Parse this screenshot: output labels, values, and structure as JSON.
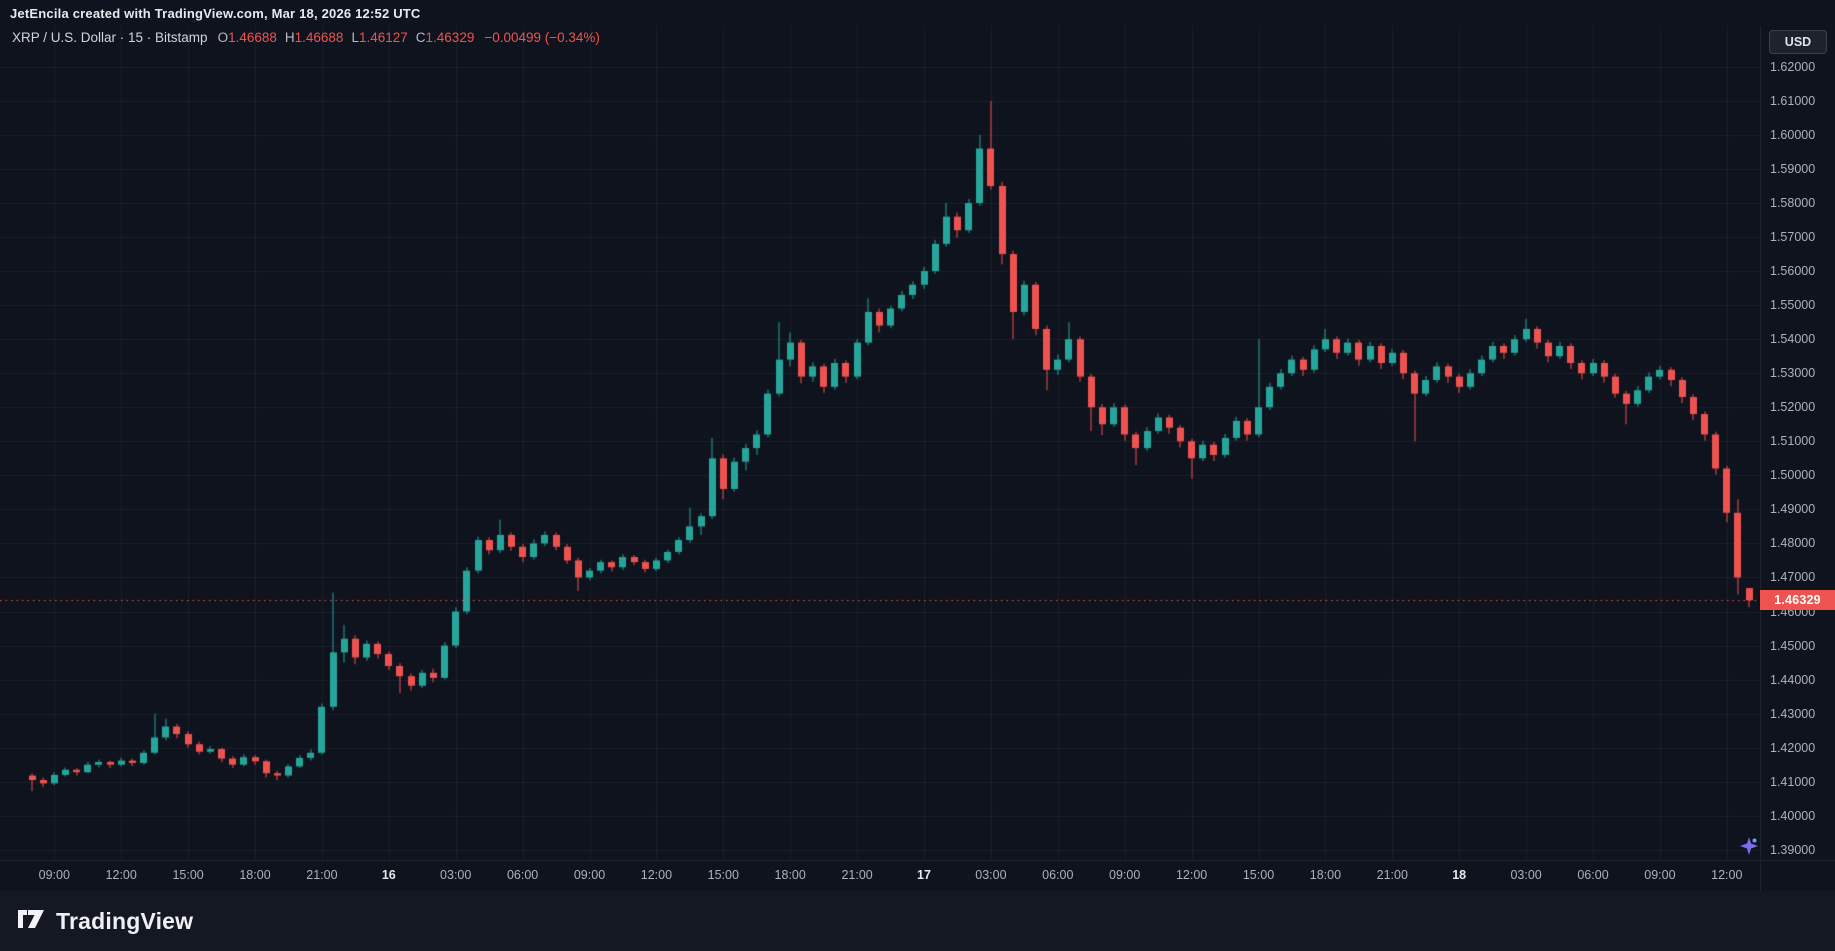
{
  "attribution": {
    "text": "JetEncila created with TradingView.com, Mar 18, 2026 12:52 UTC"
  },
  "header": {
    "title_full": "XRP / U.S. Dollar · 15 · Bitstamp",
    "symbol": "XRP / U.S. Dollar",
    "interval": "15",
    "exchange": "Bitstamp",
    "ohlc": {
      "o_label": "O",
      "o": "1.46688",
      "h_label": "H",
      "h": "1.46688",
      "l_label": "L",
      "l": "1.46127",
      "c_label": "C",
      "c": "1.46329",
      "change": "−0.00499 (−0.34%)"
    }
  },
  "currency_button": {
    "label": "USD"
  },
  "price_scale": {
    "ticks": [
      "1.62000",
      "1.61000",
      "1.60000",
      "1.59000",
      "1.58000",
      "1.57000",
      "1.56000",
      "1.55000",
      "1.54000",
      "1.53000",
      "1.52000",
      "1.51000",
      "1.50000",
      "1.49000",
      "1.48000",
      "1.47000",
      "1.46000",
      "1.45000",
      "1.44000",
      "1.43000",
      "1.42000",
      "1.41000",
      "1.40000",
      "1.39000"
    ],
    "last_price_label": "1.46329",
    "last_price": 1.46329
  },
  "time_axis": {
    "labels": [
      {
        "t": "09:00",
        "i": 2
      },
      {
        "t": "12:00",
        "i": 8
      },
      {
        "t": "15:00",
        "i": 14
      },
      {
        "t": "18:00",
        "i": 20
      },
      {
        "t": "21:00",
        "i": 26
      },
      {
        "t": "16",
        "i": 32,
        "major": true
      },
      {
        "t": "03:00",
        "i": 38
      },
      {
        "t": "06:00",
        "i": 44
      },
      {
        "t": "09:00",
        "i": 50
      },
      {
        "t": "12:00",
        "i": 56
      },
      {
        "t": "15:00",
        "i": 62
      },
      {
        "t": "18:00",
        "i": 68
      },
      {
        "t": "21:00",
        "i": 74
      },
      {
        "t": "17",
        "i": 80,
        "major": true
      },
      {
        "t": "03:00",
        "i": 86
      },
      {
        "t": "06:00",
        "i": 92
      },
      {
        "t": "09:00",
        "i": 98
      },
      {
        "t": "12:00",
        "i": 104
      },
      {
        "t": "15:00",
        "i": 110
      },
      {
        "t": "18:00",
        "i": 116
      },
      {
        "t": "21:00",
        "i": 122
      },
      {
        "t": "18",
        "i": 128,
        "major": true
      },
      {
        "t": "03:00",
        "i": 134
      },
      {
        "t": "06:00",
        "i": 140
      },
      {
        "t": "09:00",
        "i": 146
      },
      {
        "t": "12:00",
        "i": 152
      }
    ]
  },
  "logo": {
    "text": "TradingView"
  },
  "chart_data": {
    "type": "candlestick",
    "title": "XRP / U.S. Dollar · 15 · Bitstamp",
    "symbol": "XRP/USD",
    "source_interval": "15",
    "granularity_minutes": 30,
    "approximation": "30-minute downsample estimated from axes of the 15-minute chart",
    "start": "Mar 15 08:00 UTC",
    "end": "Mar 18 12:52 UTC",
    "ylim": [
      1.387,
      1.632
    ],
    "grid": true,
    "colors": {
      "up": "#26a69a",
      "down": "#ef5350",
      "grid": "rgba(240,243,250,0.055)",
      "last_price_line": "#ef5350"
    },
    "last": {
      "open": 1.46688,
      "high": 1.46688,
      "low": 1.46127,
      "close": 1.46329,
      "change": -0.00499,
      "change_pct": -0.34
    },
    "candles": [
      [
        1.4118,
        1.4125,
        1.4072,
        1.4105
      ],
      [
        1.4105,
        1.4112,
        1.4085,
        1.4095
      ],
      [
        1.4095,
        1.4128,
        1.409,
        1.412
      ],
      [
        1.412,
        1.4142,
        1.4115,
        1.4135
      ],
      [
        1.4135,
        1.414,
        1.4118,
        1.4128
      ],
      [
        1.4128,
        1.4158,
        1.4125,
        1.415
      ],
      [
        1.415,
        1.4165,
        1.4142,
        1.4158
      ],
      [
        1.4158,
        1.4162,
        1.414,
        1.415
      ],
      [
        1.415,
        1.417,
        1.4145,
        1.4162
      ],
      [
        1.4162,
        1.4168,
        1.4146,
        1.4155
      ],
      [
        1.4155,
        1.4192,
        1.415,
        1.4185
      ],
      [
        1.4185,
        1.43,
        1.418,
        1.423
      ],
      [
        1.423,
        1.4285,
        1.4222,
        1.4262
      ],
      [
        1.4262,
        1.427,
        1.4228,
        1.424
      ],
      [
        1.424,
        1.4248,
        1.42,
        1.421
      ],
      [
        1.421,
        1.4218,
        1.418,
        1.4188
      ],
      [
        1.4188,
        1.4205,
        1.4182,
        1.4196
      ],
      [
        1.4196,
        1.42,
        1.4158,
        1.4168
      ],
      [
        1.4168,
        1.4175,
        1.414,
        1.415
      ],
      [
        1.415,
        1.418,
        1.4145,
        1.4172
      ],
      [
        1.4172,
        1.4178,
        1.415,
        1.416
      ],
      [
        1.416,
        1.4165,
        1.4112,
        1.4125
      ],
      [
        1.4125,
        1.4132,
        1.4105,
        1.4118
      ],
      [
        1.4118,
        1.4152,
        1.4112,
        1.4145
      ],
      [
        1.4145,
        1.4178,
        1.414,
        1.417
      ],
      [
        1.417,
        1.4195,
        1.4162,
        1.4185
      ],
      [
        1.4185,
        1.433,
        1.418,
        1.432
      ],
      [
        1.432,
        1.4655,
        1.431,
        1.448
      ],
      [
        1.448,
        1.456,
        1.445,
        1.452
      ],
      [
        1.452,
        1.453,
        1.4445,
        1.4465
      ],
      [
        1.4465,
        1.4515,
        1.4455,
        1.4505
      ],
      [
        1.4505,
        1.4512,
        1.4462,
        1.4475
      ],
      [
        1.4475,
        1.4482,
        1.4428,
        1.444
      ],
      [
        1.444,
        1.4448,
        1.436,
        1.441
      ],
      [
        1.441,
        1.4418,
        1.4368,
        1.4382
      ],
      [
        1.4382,
        1.4428,
        1.4375,
        1.442
      ],
      [
        1.442,
        1.4432,
        1.4392,
        1.4405
      ],
      [
        1.4405,
        1.451,
        1.44,
        1.45
      ],
      [
        1.45,
        1.4612,
        1.4492,
        1.46
      ],
      [
        1.46,
        1.473,
        1.4592,
        1.472
      ],
      [
        1.472,
        1.482,
        1.4712,
        1.481
      ],
      [
        1.481,
        1.4818,
        1.4768,
        1.478
      ],
      [
        1.478,
        1.487,
        1.4772,
        1.4825
      ],
      [
        1.4825,
        1.4832,
        1.4778,
        1.479
      ],
      [
        1.479,
        1.4798,
        1.4745,
        1.476
      ],
      [
        1.476,
        1.4812,
        1.4752,
        1.48
      ],
      [
        1.48,
        1.4835,
        1.4792,
        1.4825
      ],
      [
        1.4825,
        1.4832,
        1.478,
        1.479
      ],
      [
        1.479,
        1.4798,
        1.474,
        1.475
      ],
      [
        1.475,
        1.4758,
        1.466,
        1.47
      ],
      [
        1.47,
        1.4728,
        1.4692,
        1.472
      ],
      [
        1.472,
        1.4752,
        1.4712,
        1.4745
      ],
      [
        1.4745,
        1.475,
        1.4718,
        1.473
      ],
      [
        1.473,
        1.4768,
        1.4722,
        1.476
      ],
      [
        1.476,
        1.4766,
        1.4736,
        1.4745
      ],
      [
        1.4745,
        1.4752,
        1.4715,
        1.4725
      ],
      [
        1.4725,
        1.4758,
        1.4718,
        1.475
      ],
      [
        1.475,
        1.4782,
        1.4742,
        1.4775
      ],
      [
        1.4775,
        1.4818,
        1.4768,
        1.481
      ],
      [
        1.481,
        1.4905,
        1.4802,
        1.485
      ],
      [
        1.485,
        1.4888,
        1.4825,
        1.488
      ],
      [
        1.488,
        1.511,
        1.4872,
        1.505
      ],
      [
        1.505,
        1.5062,
        1.493,
        1.496
      ],
      [
        1.496,
        1.5052,
        1.4952,
        1.504
      ],
      [
        1.504,
        1.5092,
        1.5015,
        1.508
      ],
      [
        1.508,
        1.5132,
        1.506,
        1.512
      ],
      [
        1.512,
        1.5252,
        1.5112,
        1.524
      ],
      [
        1.524,
        1.545,
        1.5232,
        1.534
      ],
      [
        1.534,
        1.542,
        1.532,
        1.539
      ],
      [
        1.539,
        1.5398,
        1.527,
        1.529
      ],
      [
        1.529,
        1.5332,
        1.5275,
        1.532
      ],
      [
        1.532,
        1.5328,
        1.5242,
        1.526
      ],
      [
        1.526,
        1.5342,
        1.5252,
        1.533
      ],
      [
        1.533,
        1.5338,
        1.5272,
        1.529
      ],
      [
        1.529,
        1.54,
        1.5282,
        1.539
      ],
      [
        1.539,
        1.552,
        1.5382,
        1.548
      ],
      [
        1.548,
        1.549,
        1.542,
        1.544
      ],
      [
        1.544,
        1.5498,
        1.5432,
        1.549
      ],
      [
        1.549,
        1.5542,
        1.5482,
        1.553
      ],
      [
        1.553,
        1.557,
        1.5518,
        1.556
      ],
      [
        1.556,
        1.5612,
        1.5548,
        1.56
      ],
      [
        1.56,
        1.5692,
        1.5592,
        1.568
      ],
      [
        1.568,
        1.58,
        1.5672,
        1.576
      ],
      [
        1.576,
        1.5772,
        1.5698,
        1.572
      ],
      [
        1.572,
        1.5812,
        1.5712,
        1.58
      ],
      [
        1.58,
        1.6,
        1.5792,
        1.596
      ],
      [
        1.596,
        1.61,
        1.584,
        1.585
      ],
      [
        1.585,
        1.5862,
        1.562,
        1.565
      ],
      [
        1.565,
        1.566,
        1.54,
        1.548
      ],
      [
        1.548,
        1.5572,
        1.547,
        1.556
      ],
      [
        1.556,
        1.5568,
        1.5412,
        1.543
      ],
      [
        1.543,
        1.544,
        1.525,
        1.531
      ],
      [
        1.531,
        1.5355,
        1.5295,
        1.534
      ],
      [
        1.534,
        1.545,
        1.5332,
        1.54
      ],
      [
        1.54,
        1.5408,
        1.5275,
        1.529
      ],
      [
        1.529,
        1.5298,
        1.513,
        1.52
      ],
      [
        1.52,
        1.521,
        1.5118,
        1.515
      ],
      [
        1.515,
        1.5212,
        1.5142,
        1.52
      ],
      [
        1.52,
        1.5208,
        1.5102,
        1.512
      ],
      [
        1.512,
        1.5128,
        1.503,
        1.508
      ],
      [
        1.508,
        1.5142,
        1.5072,
        1.513
      ],
      [
        1.513,
        1.5182,
        1.5122,
        1.517
      ],
      [
        1.517,
        1.5178,
        1.5122,
        1.514
      ],
      [
        1.514,
        1.5148,
        1.5082,
        1.51
      ],
      [
        1.51,
        1.5108,
        1.499,
        1.505
      ],
      [
        1.505,
        1.5102,
        1.5042,
        1.509
      ],
      [
        1.509,
        1.5098,
        1.5042,
        1.506
      ],
      [
        1.506,
        1.5122,
        1.5052,
        1.511
      ],
      [
        1.511,
        1.5172,
        1.5102,
        1.516
      ],
      [
        1.516,
        1.5168,
        1.5102,
        1.512
      ],
      [
        1.512,
        1.54,
        1.5112,
        1.52
      ],
      [
        1.52,
        1.5272,
        1.5192,
        1.526
      ],
      [
        1.526,
        1.5312,
        1.5252,
        1.53
      ],
      [
        1.53,
        1.5352,
        1.5292,
        1.534
      ],
      [
        1.534,
        1.5348,
        1.5292,
        1.531
      ],
      [
        1.531,
        1.5382,
        1.5302,
        1.537
      ],
      [
        1.537,
        1.543,
        1.5362,
        1.54
      ],
      [
        1.54,
        1.5408,
        1.5342,
        1.536
      ],
      [
        1.536,
        1.5402,
        1.5352,
        1.539
      ],
      [
        1.539,
        1.5398,
        1.5322,
        1.534
      ],
      [
        1.534,
        1.5392,
        1.5332,
        1.538
      ],
      [
        1.538,
        1.5388,
        1.5312,
        1.533
      ],
      [
        1.533,
        1.5372,
        1.5322,
        1.536
      ],
      [
        1.536,
        1.5368,
        1.5282,
        1.53
      ],
      [
        1.53,
        1.5308,
        1.51,
        1.524
      ],
      [
        1.524,
        1.5292,
        1.5232,
        1.528
      ],
      [
        1.528,
        1.5332,
        1.5272,
        1.532
      ],
      [
        1.532,
        1.5328,
        1.5272,
        1.529
      ],
      [
        1.529,
        1.5298,
        1.5242,
        1.526
      ],
      [
        1.526,
        1.5312,
        1.5252,
        1.53
      ],
      [
        1.53,
        1.5352,
        1.5292,
        1.534
      ],
      [
        1.534,
        1.5392,
        1.5332,
        1.538
      ],
      [
        1.538,
        1.5388,
        1.5342,
        1.536
      ],
      [
        1.536,
        1.5412,
        1.5352,
        1.54
      ],
      [
        1.54,
        1.546,
        1.5392,
        1.543
      ],
      [
        1.543,
        1.5438,
        1.5372,
        1.539
      ],
      [
        1.539,
        1.5398,
        1.5332,
        1.535
      ],
      [
        1.535,
        1.5392,
        1.5342,
        1.538
      ],
      [
        1.538,
        1.5388,
        1.5312,
        1.533
      ],
      [
        1.533,
        1.5338,
        1.5282,
        1.53
      ],
      [
        1.53,
        1.5342,
        1.5292,
        1.533
      ],
      [
        1.533,
        1.5338,
        1.5272,
        1.529
      ],
      [
        1.529,
        1.5298,
        1.5228,
        1.524
      ],
      [
        1.524,
        1.5248,
        1.515,
        1.521
      ],
      [
        1.521,
        1.5262,
        1.5202,
        1.525
      ],
      [
        1.525,
        1.5302,
        1.5242,
        1.529
      ],
      [
        1.529,
        1.5322,
        1.5282,
        1.531
      ],
      [
        1.531,
        1.5318,
        1.5262,
        1.528
      ],
      [
        1.528,
        1.5288,
        1.5212,
        1.523
      ],
      [
        1.523,
        1.5238,
        1.5162,
        1.518
      ],
      [
        1.518,
        1.5188,
        1.5102,
        1.512
      ],
      [
        1.512,
        1.5128,
        1.5002,
        1.502
      ],
      [
        1.502,
        1.5028,
        1.4862,
        1.489
      ],
      [
        1.489,
        1.493,
        1.465,
        1.47
      ],
      [
        1.46688,
        1.46688,
        1.46127,
        1.46329
      ]
    ]
  }
}
